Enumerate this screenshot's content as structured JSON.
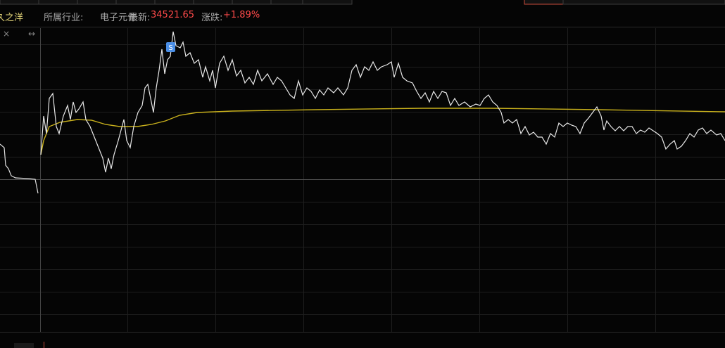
{
  "header": {
    "stock_name": "久之洋",
    "industry_label": "所属行业:",
    "industry": "电子元件",
    "latest_label": "最新:",
    "latest": "34521.65",
    "change_label": "涨跌:",
    "change": "+1.89%"
  },
  "chart": {
    "close_icon": "×",
    "resize_icon": "↔",
    "signal": "S"
  }
}
